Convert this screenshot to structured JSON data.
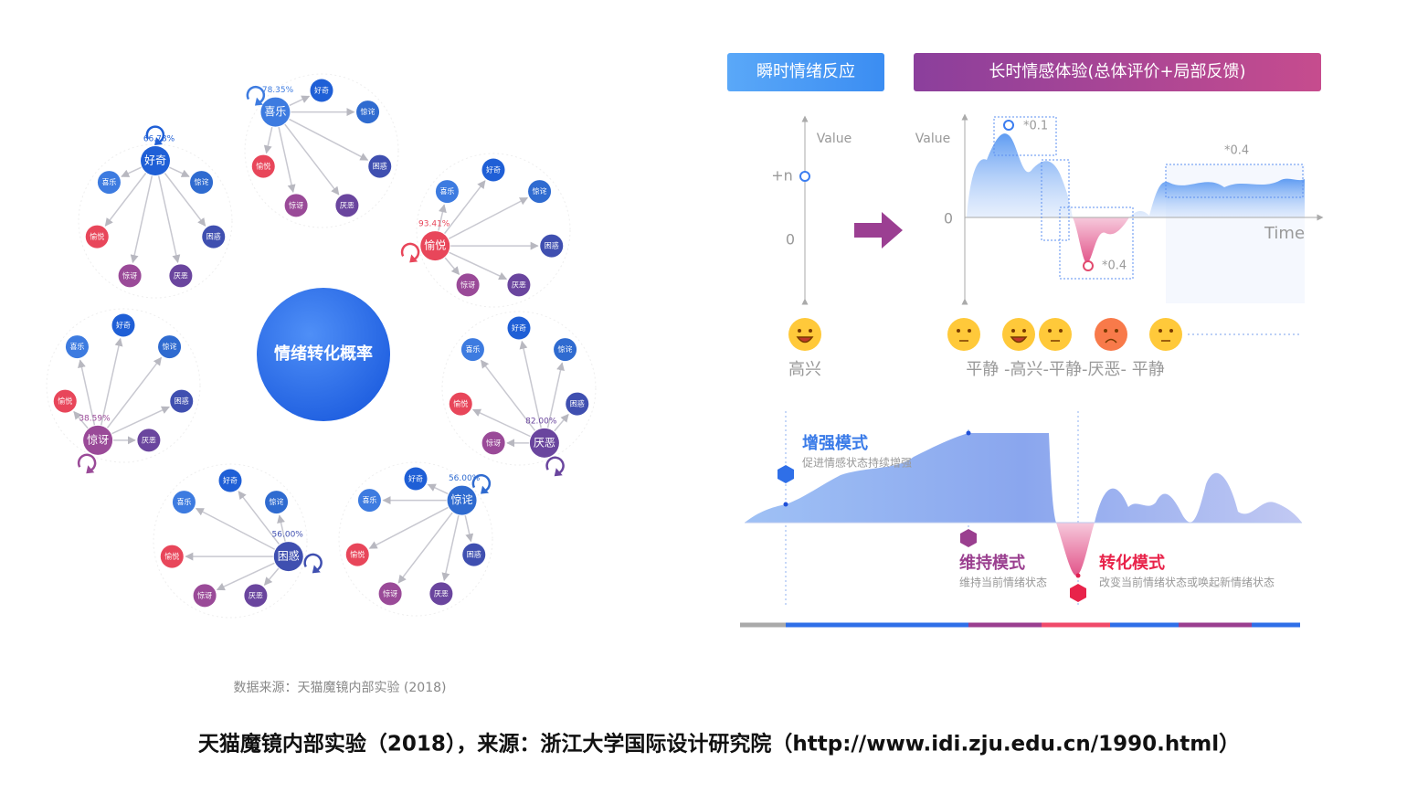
{
  "left": {
    "title": "情绪转化概率",
    "clusters": [
      {
        "nodes": [
          {
            "label": "好奇",
            "percent": "66.78%"
          },
          {
            "label": "惊诧"
          },
          {
            "label": "困惑"
          },
          {
            "label": "厌恶"
          },
          {
            "label": "惊讶"
          },
          {
            "label": "愉悦"
          },
          {
            "label": "喜乐"
          }
        ]
      },
      {
        "nodes": [
          {
            "label": "好奇"
          },
          {
            "label": "惊诧"
          },
          {
            "label": "困惑"
          },
          {
            "label": "厌恶"
          },
          {
            "label": "惊讶"
          },
          {
            "label": "愉悦"
          },
          {
            "label": "喜乐",
            "percent": "78.35%"
          }
        ]
      },
      {
        "nodes": [
          {
            "label": "好奇"
          },
          {
            "label": "惊诧"
          },
          {
            "label": "困惑"
          },
          {
            "label": "厌恶"
          },
          {
            "label": "惊讶"
          },
          {
            "label": "愉悦",
            "percent": "93.41%"
          },
          {
            "label": "喜乐"
          }
        ]
      },
      {
        "nodes": [
          {
            "label": "好奇"
          },
          {
            "label": "惊诧"
          },
          {
            "label": "困惑"
          },
          {
            "label": "厌恶",
            "percent": "82.00%"
          },
          {
            "label": "惊讶"
          },
          {
            "label": "愉悦"
          },
          {
            "label": "喜乐"
          }
        ]
      },
      {
        "nodes": [
          {
            "label": "好奇"
          },
          {
            "label": "惊诧",
            "percent": "56.00%"
          },
          {
            "label": "困惑"
          },
          {
            "label": "厌恶"
          },
          {
            "label": "惊讶"
          },
          {
            "label": "愉悦"
          },
          {
            "label": "喜乐"
          }
        ]
      },
      {
        "nodes": [
          {
            "label": "好奇"
          },
          {
            "label": "惊诧"
          },
          {
            "label": "困惑",
            "percent": "56.00%"
          },
          {
            "label": "厌恶"
          },
          {
            "label": "惊讶"
          },
          {
            "label": "愉悦"
          },
          {
            "label": "喜乐"
          }
        ]
      },
      {
        "nodes": [
          {
            "label": "好奇"
          },
          {
            "label": "惊诧"
          },
          {
            "label": "困惑"
          },
          {
            "label": "厌恶"
          },
          {
            "label": "惊讶",
            "percent": "38.59%"
          },
          {
            "label": "愉悦"
          },
          {
            "label": "喜乐"
          }
        ]
      }
    ],
    "source": "数据来源：天猫魔镜内部实验 (2018)"
  },
  "right": {
    "tabs": [
      "瞬时情绪反应",
      "长时情感体验(总体评价+局部反馈)"
    ],
    "instant": {
      "axis_label": "Value",
      "ticks": [
        "+n",
        "0"
      ],
      "emotion": "高兴"
    },
    "long": {
      "axis_label": "Value",
      "zero": "0",
      "time": "Time",
      "annotations": [
        "*0.1",
        "*0.4",
        "*0.4"
      ],
      "sequence": "平静 -高兴-平静-厌恶- 平静"
    },
    "modes": [
      {
        "title": "增强模式",
        "desc": "促进情感状态持续增强"
      },
      {
        "title": "维持模式",
        "desc": "维持当前情绪状态"
      },
      {
        "title": "转化模式",
        "desc": "改变当前情绪状态或唤起新情绪状态"
      }
    ]
  },
  "caption": "天猫魔镜内部实验（2018），来源：浙江大学国际设计研究院（http://www.idi.zju.edu.cn/1990.html）"
}
